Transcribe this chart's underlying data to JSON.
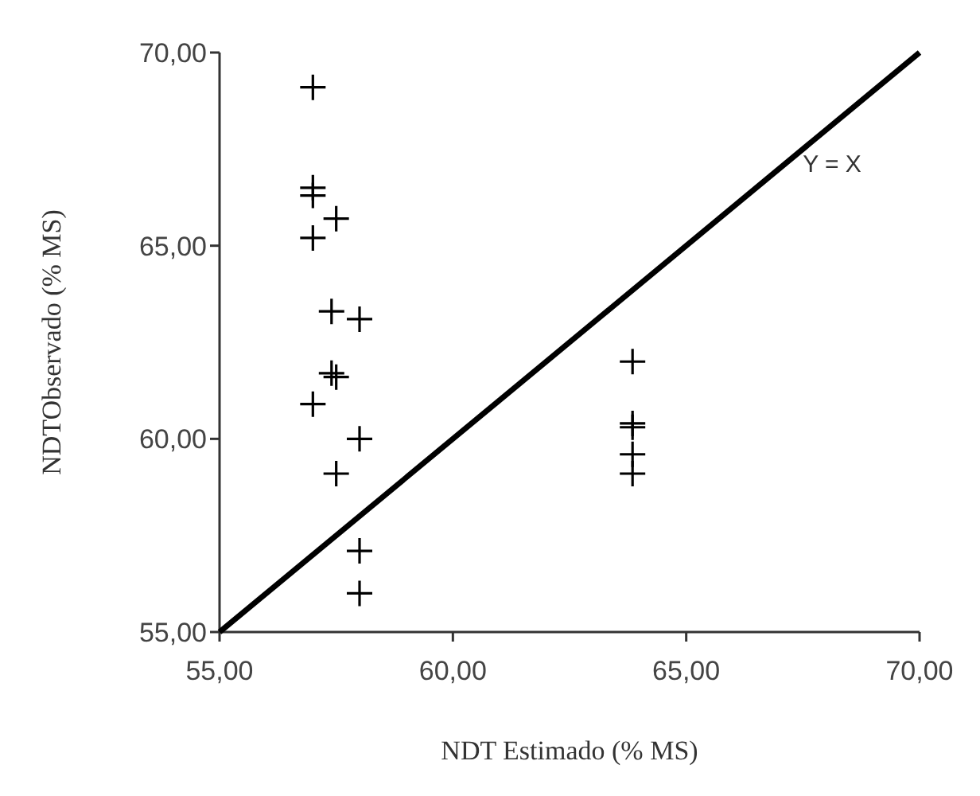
{
  "chart_data": {
    "type": "scatter",
    "xlabel": "NDT Estimado (% MS)",
    "ylabel": "NDTObservado (% MS)",
    "xlim": [
      55,
      70
    ],
    "ylim": [
      55,
      70
    ],
    "xticks": [
      {
        "value": 55,
        "label": "55,00"
      },
      {
        "value": 60,
        "label": "60,00"
      },
      {
        "value": 65,
        "label": "65,00"
      },
      {
        "value": 70,
        "label": "70,00"
      }
    ],
    "yticks": [
      {
        "value": 55,
        "label": "55,00"
      },
      {
        "value": 60,
        "label": "60,00"
      },
      {
        "value": 65,
        "label": "65,00"
      },
      {
        "value": 70,
        "label": "70,00"
      }
    ],
    "grid": false,
    "series": [
      {
        "color": "#000000",
        "marker": "cross",
        "x": [
          57.0,
          57.0,
          57.0,
          57.5,
          57.0,
          57.4,
          58.0,
          57.4,
          57.5,
          57.0,
          58.0,
          57.5,
          63.85,
          63.85,
          63.85,
          63.85,
          63.85,
          58.0,
          58.0
        ],
        "values": [
          69.1,
          66.5,
          66.3,
          65.7,
          65.2,
          63.3,
          63.1,
          61.7,
          61.6,
          60.9,
          60.0,
          59.1,
          62.0,
          60.4,
          60.3,
          59.6,
          59.1,
          57.1,
          56.0
        ]
      },
      {
        "type": "line",
        "name": "Y = X",
        "color": "#000000",
        "x": [
          55,
          70
        ],
        "values": [
          55,
          70
        ],
        "line_style": "solid"
      }
    ]
  }
}
